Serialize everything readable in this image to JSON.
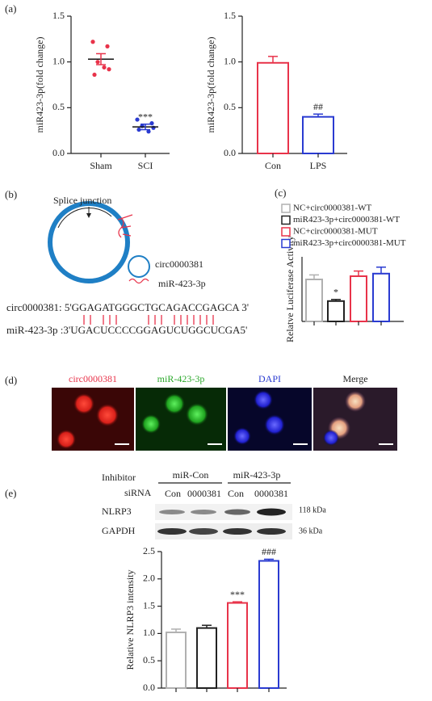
{
  "panels": [
    "(a)",
    "(b)",
    "(c)",
    "(d)",
    "(e)"
  ],
  "diagram": {
    "splice_label": "Splice junction",
    "circ_label": "circ0000381",
    "mir_label": "miR-423-3p",
    "seq_top": "circ0000381: 5'GGAGATGGGCTGCAGACCGAGCA 3'",
    "seq_bottom": "miR-423-3p :3'UGACUCCCCGGAGUCUGGCUCGA5'"
  },
  "microscopy": {
    "labels": [
      "circ0000381",
      "miR-423-3p",
      "DAPI",
      "Merge"
    ]
  },
  "western_blot": {
    "inhibitor_label": "Inhibitor",
    "groups": [
      "miR-Con",
      "miR-423-3p"
    ],
    "sirna_label": "siRNA",
    "lanes": [
      "Con",
      "0000381",
      "Con",
      "0000381"
    ],
    "proteins": [
      "NLRP3",
      "GAPDH"
    ],
    "sizes": [
      "118 kDa",
      "36 kDa"
    ]
  },
  "chart_data": [
    {
      "type": "dot",
      "ylabel": "miR423-3p(fold change)",
      "categories": [
        "Sham",
        "SCI"
      ],
      "colors": [
        "#e8334a",
        "#2a3bd1"
      ],
      "values": [
        1.03,
        0.29
      ],
      "errors": [
        0.06,
        0.03
      ],
      "points": [
        [
          1.22,
          1.17,
          1.0,
          0.92,
          0.86,
          0.94
        ],
        [
          0.37,
          0.33,
          0.3,
          0.28,
          0.26,
          0.24
        ]
      ],
      "significance": [
        null,
        "***"
      ],
      "ylim": [
        0,
        1.5
      ],
      "yticks": [
        {
          "value": 0,
          "label": "0.0"
        },
        {
          "value": 0.5,
          "label": "0.5"
        },
        {
          "value": 1,
          "label": "1.0"
        },
        {
          "value": 1.5,
          "label": "1.5"
        }
      ]
    },
    {
      "type": "bar",
      "ylabel": "miR423-3p(fold change)",
      "categories": [
        "Con",
        "LPS"
      ],
      "colors": [
        "#e8334a",
        "#2a3bd1"
      ],
      "values": [
        0.99,
        0.4
      ],
      "errors": [
        0.07,
        0.03
      ],
      "significance": [
        null,
        "##"
      ],
      "ylim": [
        0,
        1.5
      ],
      "yticks": [
        {
          "value": 0,
          "label": "0.0"
        },
        {
          "value": 0.5,
          "label": "0.5"
        },
        {
          "value": 1,
          "label": "1.0"
        },
        {
          "value": 1.5,
          "label": "1.5"
        }
      ]
    },
    {
      "type": "bar",
      "ylabel": "Relatve Luciferase Activity",
      "ylim": [
        0,
        20
      ],
      "series": [
        {
          "name": "NC+circ0000381-WT",
          "color": "#b0b0b0",
          "values": [
            13
          ],
          "errors": [
            1.4
          ],
          "significance": [
            null
          ]
        },
        {
          "name": "miR423-3p+circ0000381-WT",
          "color": "#222222",
          "values": [
            6.3
          ],
          "errors": [
            0.5
          ],
          "significance": [
            "*"
          ]
        },
        {
          "name": "NC+circ0000381-MUT",
          "color": "#e8334a",
          "values": [
            14
          ],
          "errors": [
            1.6
          ],
          "significance": [
            null
          ]
        },
        {
          "name": "miR423-3p+circ0000381-MUT",
          "color": "#2a3bd1",
          "values": [
            14.8
          ],
          "errors": [
            2.0
          ],
          "significance": [
            null
          ]
        }
      ]
    },
    {
      "type": "bar",
      "ylabel": "Relative NLRP3 intensity",
      "colors": [
        "#b0b0b0",
        "#222222",
        "#e8334a",
        "#2a3bd1"
      ],
      "values": [
        1.02,
        1.1,
        1.56,
        2.33
      ],
      "errors": [
        0.06,
        0.05,
        0.02,
        0.03
      ],
      "significance": [
        null,
        null,
        "***",
        "###"
      ],
      "ylim": [
        0,
        2.5
      ],
      "yticks": [
        {
          "value": 0,
          "label": "0.0"
        },
        {
          "value": 0.5,
          "label": "0.5"
        },
        {
          "value": 1,
          "label": "1.0"
        },
        {
          "value": 1.5,
          "label": "1.5"
        },
        {
          "value": 2,
          "label": "2.0"
        },
        {
          "value": 2.5,
          "label": "2.5"
        }
      ]
    }
  ]
}
